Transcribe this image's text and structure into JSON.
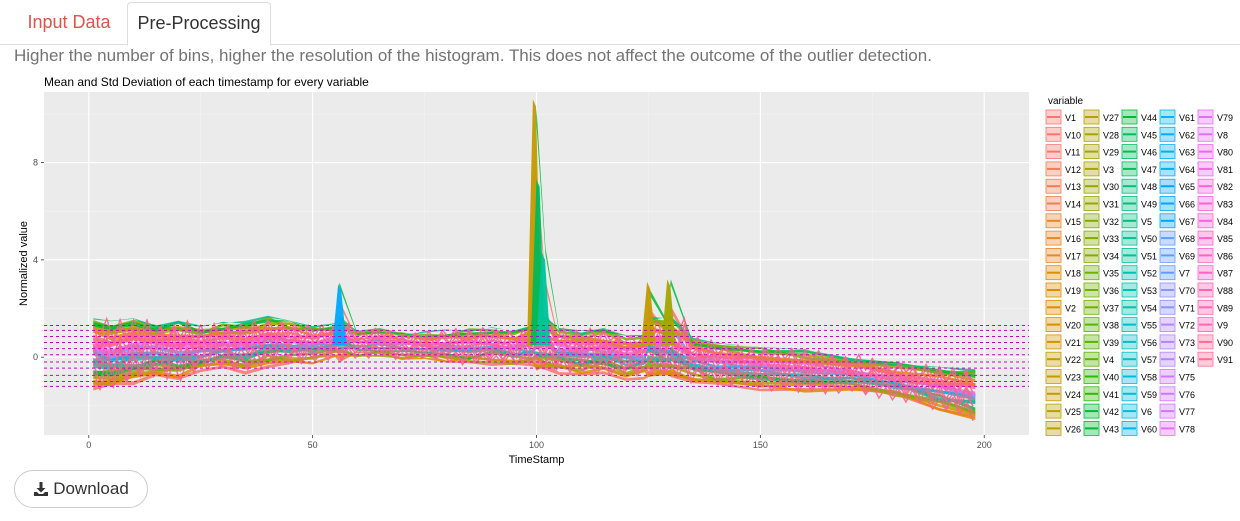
{
  "tabs": [
    {
      "label": "Input Data",
      "active": false
    },
    {
      "label": "Pre-Processing",
      "active": true
    }
  ],
  "help_text": "Higher the number of bins, higher the resolution of the histogram. This does not affect the outcome of the outlier detection.",
  "download_label": "Download",
  "download_icon": "download-icon",
  "chart_data": {
    "type": "area",
    "title": "Mean and Std Deviation of each timestamp for every variable",
    "xlabel": "TimeStamp",
    "ylabel": "Normalized value",
    "xlim": [
      -10,
      210
    ],
    "ylim": [
      -3.2,
      10.9
    ],
    "x_ticks": [
      0,
      50,
      100,
      150,
      200
    ],
    "y_ticks": [
      0,
      4,
      8
    ],
    "grid": true,
    "legend_title": "variable",
    "legend_position": "right",
    "variables": [
      "V1",
      "V10",
      "V11",
      "V12",
      "V13",
      "V14",
      "V15",
      "V16",
      "V17",
      "V18",
      "V19",
      "V2",
      "V20",
      "V21",
      "V22",
      "V23",
      "V24",
      "V25",
      "V26",
      "V27",
      "V28",
      "V29",
      "V3",
      "V30",
      "V31",
      "V32",
      "V33",
      "V34",
      "V35",
      "V36",
      "V37",
      "V38",
      "V39",
      "V4",
      "V40",
      "V41",
      "V42",
      "V43",
      "V44",
      "V45",
      "V46",
      "V47",
      "V48",
      "V49",
      "V5",
      "V50",
      "V51",
      "V52",
      "V53",
      "V54",
      "V55",
      "V56",
      "V57",
      "V58",
      "V59",
      "V6",
      "V60",
      "V61",
      "V62",
      "V63",
      "V64",
      "V65",
      "V66",
      "V67",
      "V68",
      "V69",
      "V7",
      "V70",
      "V71",
      "V72",
      "V73",
      "V74",
      "V75",
      "V76",
      "V77",
      "V78",
      "V79",
      "V8",
      "V80",
      "V81",
      "V82",
      "V83",
      "V84",
      "V85",
      "V86",
      "V87",
      "V88",
      "V89",
      "V9",
      "V90",
      "V91"
    ],
    "reference_lines_y": [
      1.3,
      1.1,
      0.85,
      0.6,
      0.35,
      0.1,
      -0.2,
      -0.45,
      -0.75,
      -1.0,
      -1.2
    ],
    "reference_line_color": "#cc00cc",
    "envelope": {
      "x": [
        1,
        5,
        10,
        15,
        20,
        25,
        30,
        35,
        40,
        45,
        50,
        55,
        56,
        60,
        65,
        70,
        75,
        80,
        85,
        90,
        95,
        99,
        100,
        102,
        105,
        110,
        115,
        120,
        124,
        125,
        129,
        130,
        135,
        140,
        150,
        160,
        170,
        180,
        190,
        198
      ],
      "upper": [
        1.6,
        1.5,
        1.6,
        1.4,
        1.5,
        1.3,
        1.4,
        1.5,
        1.7,
        1.5,
        1.3,
        1.4,
        3.1,
        1.1,
        1.2,
        1.0,
        1.0,
        1.1,
        1.2,
        1.2,
        1.1,
        1.3,
        10.6,
        4.5,
        1.2,
        1.1,
        1.2,
        0.9,
        0.9,
        3.1,
        1.6,
        3.2,
        0.8,
        0.6,
        0.4,
        0.3,
        0.1,
        -0.2,
        -0.4,
        -0.5
      ],
      "lower": [
        -1.2,
        -1.3,
        -1.0,
        -0.8,
        -0.9,
        -0.6,
        -0.5,
        -0.6,
        -0.4,
        -0.3,
        -0.2,
        -0.1,
        -0.1,
        0.0,
        0.0,
        -0.1,
        -0.1,
        -0.2,
        -0.3,
        -0.3,
        -0.4,
        -0.4,
        -0.5,
        -0.5,
        -0.6,
        -0.7,
        -0.7,
        -0.8,
        -0.8,
        -0.8,
        -0.8,
        -0.9,
        -1.0,
        -1.1,
        -1.3,
        -1.4,
        -1.5,
        -1.7,
        -2.2,
        -2.6
      ]
    },
    "peaks": [
      {
        "x": 99.5,
        "y": 10.6,
        "color": "#c49a00"
      },
      {
        "x": 100.3,
        "y": 7.3,
        "color": "#00b85c"
      },
      {
        "x": 101.5,
        "y": 4.3,
        "color": "#00c49a"
      },
      {
        "x": 125,
        "y": 3.1,
        "color": "#c49a00"
      },
      {
        "x": 129.5,
        "y": 3.2,
        "color": "#a3a500"
      },
      {
        "x": 56,
        "y": 3.0,
        "color": "#00a9ff"
      }
    ]
  }
}
